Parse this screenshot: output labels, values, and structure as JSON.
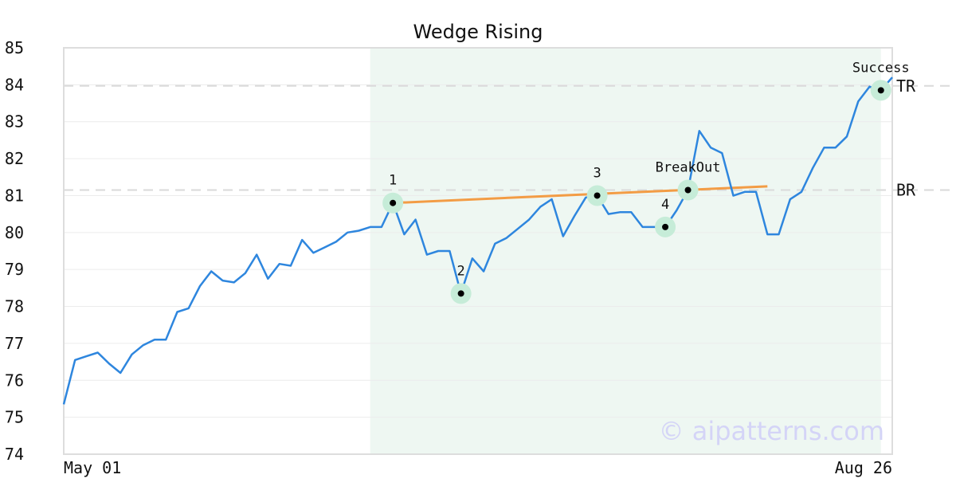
{
  "chart_data": {
    "type": "line",
    "title": "Wedge Rising",
    "xlabel": "",
    "ylabel": "",
    "ylim": [
      74,
      85
    ],
    "yticks": [
      74,
      75,
      76,
      77,
      78,
      79,
      80,
      81,
      82,
      83,
      84,
      85
    ],
    "x_tick_labels": [
      "May 01",
      "Aug 26"
    ],
    "grid": true,
    "series": [
      {
        "color": "#2e86de",
        "values": [
          75.35,
          76.55,
          76.65,
          76.75,
          76.45,
          76.2,
          76.7,
          76.95,
          77.1,
          77.1,
          77.85,
          77.95,
          78.55,
          78.95,
          78.7,
          78.65,
          78.9,
          79.4,
          78.75,
          79.15,
          79.1,
          79.8,
          79.45,
          79.6,
          79.75,
          80.0,
          80.05,
          80.15,
          80.15,
          80.8,
          79.95,
          80.35,
          79.4,
          79.5,
          79.5,
          78.35,
          79.3,
          78.95,
          79.7,
          79.85,
          80.1,
          80.35,
          80.7,
          80.9,
          79.9,
          80.45,
          80.95,
          81.0,
          80.5,
          80.55,
          80.55,
          80.15,
          80.15,
          80.15,
          80.6,
          81.15,
          82.75,
          82.3,
          82.15,
          81.0,
          81.1,
          81.1,
          79.95,
          79.95,
          80.9,
          81.1,
          81.75,
          82.3,
          82.3,
          82.6,
          83.55,
          83.95,
          83.85,
          84.2
        ]
      }
    ],
    "pattern_zone": {
      "start_index": 27,
      "end_index": 72,
      "color": "#eef7f2"
    },
    "trendline": {
      "color": "#f39c45",
      "from": {
        "index": 29,
        "value": 80.8
      },
      "to": {
        "index": 62,
        "value": 81.25
      }
    },
    "levels": [
      {
        "label": "TR",
        "value": 83.97
      },
      {
        "label": "BR",
        "value": 81.15
      }
    ],
    "points": [
      {
        "label": "1",
        "index": 29,
        "value": 80.8,
        "label_pos": "above"
      },
      {
        "label": "2",
        "index": 35,
        "value": 78.35,
        "label_pos": "above"
      },
      {
        "label": "3",
        "index": 47,
        "value": 81.0,
        "label_pos": "above"
      },
      {
        "label": "4",
        "index": 53,
        "value": 80.15,
        "label_pos": "above"
      },
      {
        "label": "BreakOut",
        "index": 55,
        "value": 81.15,
        "label_pos": "above"
      },
      {
        "label": "Success",
        "index": 72,
        "value": 83.85,
        "label_pos": "above"
      }
    ],
    "watermark": "© aipatterns.com"
  }
}
